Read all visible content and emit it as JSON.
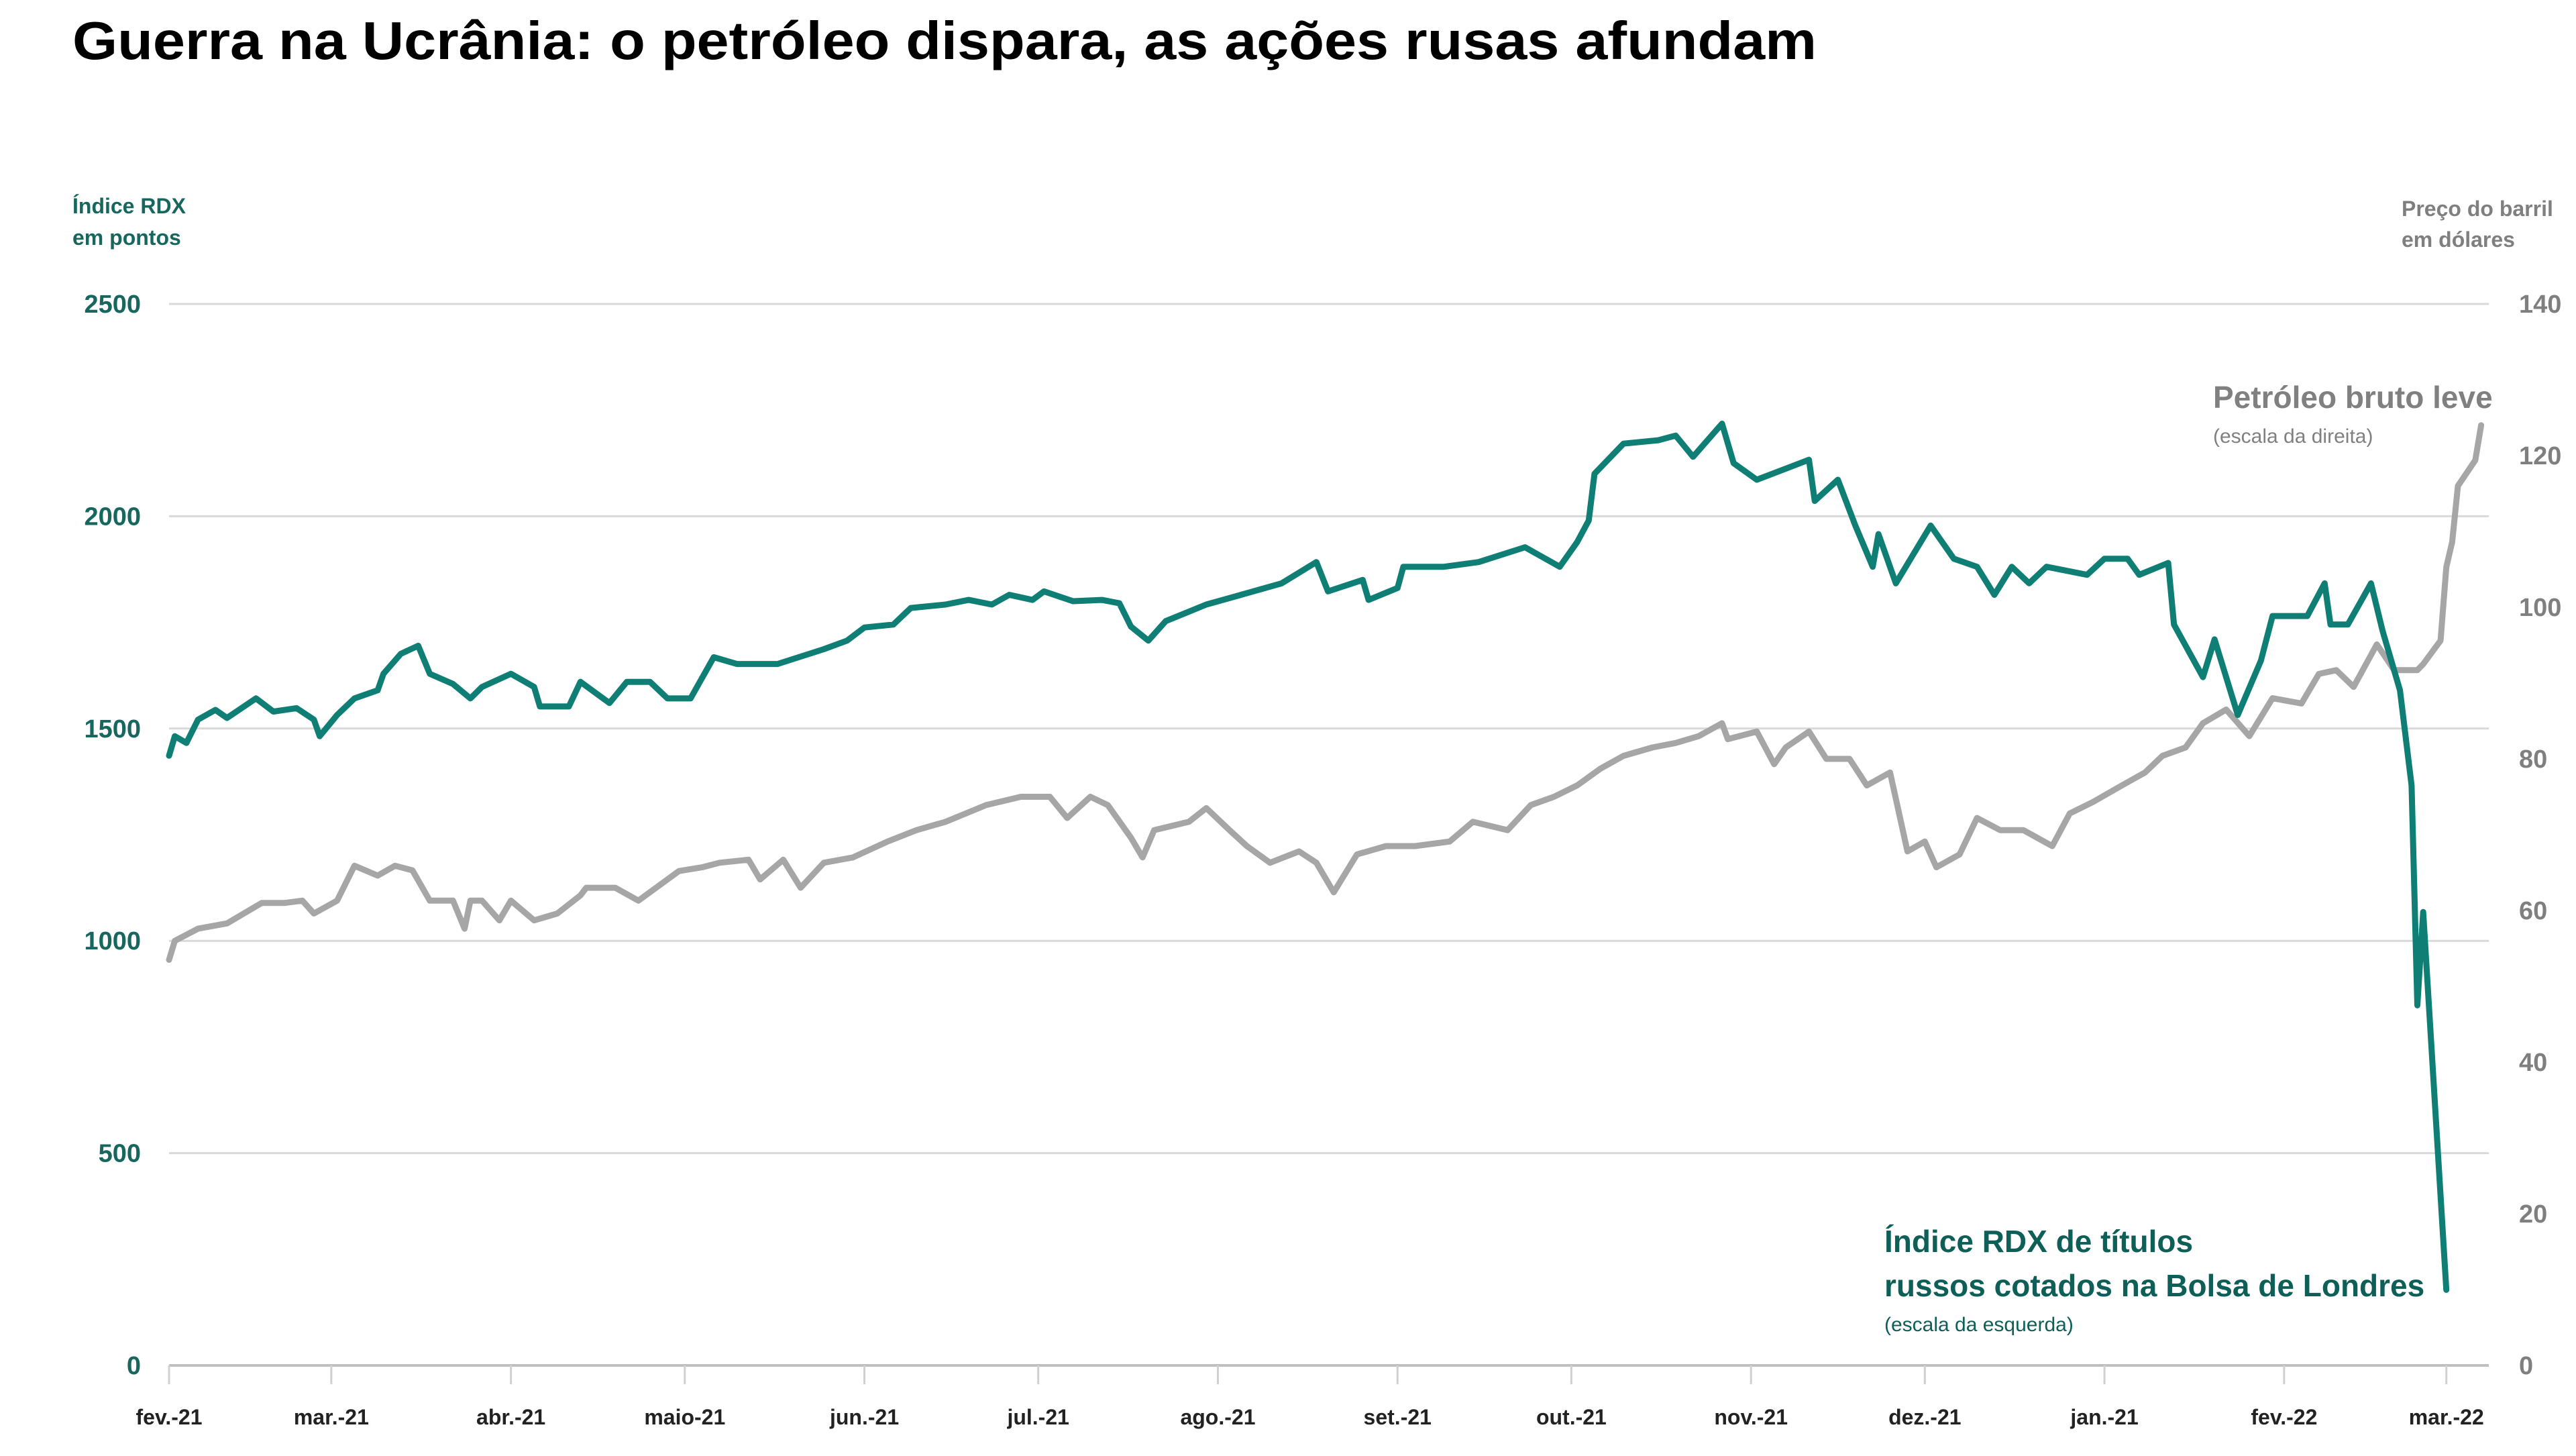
{
  "chart_data": {
    "type": "line",
    "title": "Guerra na Ucrânia: o petróleo dispara, as ações rusas afundam",
    "y_left": {
      "label_line1": "Índice RDX",
      "label_line2": "em pontos",
      "range": [
        0,
        2500
      ],
      "ticks": [
        0,
        500,
        1000,
        1500,
        2000,
        2500
      ]
    },
    "y_right": {
      "label_line1": "Preço do barril",
      "label_line2": "em dólares",
      "range": [
        0,
        140
      ],
      "ticks": [
        0,
        20,
        40,
        60,
        80,
        100,
        120,
        140
      ]
    },
    "x_ticks": [
      {
        "date": "2021-02-01",
        "label": "fev.-21"
      },
      {
        "date": "2021-03-01",
        "label": "mar.-21"
      },
      {
        "date": "2021-04-01",
        "label": "abr.-21"
      },
      {
        "date": "2021-05-01",
        "label": "maio-21"
      },
      {
        "date": "2021-06-01",
        "label": "jun.-21"
      },
      {
        "date": "2021-07-01",
        "label": "jul.-21"
      },
      {
        "date": "2021-08-01",
        "label": "ago.-21"
      },
      {
        "date": "2021-09-01",
        "label": "set.-21"
      },
      {
        "date": "2021-10-01",
        "label": "out.-21"
      },
      {
        "date": "2021-11-01",
        "label": "nov.-21"
      },
      {
        "date": "2021-12-01",
        "label": "dez.-21"
      },
      {
        "date": "2022-01-01",
        "label": "jan.-21"
      },
      {
        "date": "2022-02-01",
        "label": "fev.-22"
      },
      {
        "date": "2022-03-01",
        "label": "mar.-22"
      }
    ],
    "grid": "horizontal",
    "colors": {
      "rdx": "#0f7e74",
      "oil": "#a6a6a6",
      "grid": "#d9d9d9"
    },
    "series": [
      {
        "name": "Índice RDX de títulos russos cotados na Bolsa de Londres",
        "name_line1": "Índice RDX de títulos",
        "name_line2": "russos cotados na Bolsa de Londres",
        "note": "(escala da esquerda)",
        "axis": "left",
        "points": [
          [
            "2021-02-01",
            1436
          ],
          [
            "2021-02-02",
            1482
          ],
          [
            "2021-02-04",
            1466
          ],
          [
            "2021-02-06",
            1521
          ],
          [
            "2021-02-09",
            1544
          ],
          [
            "2021-02-11",
            1525
          ],
          [
            "2021-02-16",
            1571
          ],
          [
            "2021-02-19",
            1540
          ],
          [
            "2021-02-23",
            1548
          ],
          [
            "2021-02-26",
            1521
          ],
          [
            "2021-02-27",
            1482
          ],
          [
            "2021-03-02",
            1532
          ],
          [
            "2021-03-05",
            1571
          ],
          [
            "2021-03-09",
            1590
          ],
          [
            "2021-03-10",
            1629
          ],
          [
            "2021-03-13",
            1676
          ],
          [
            "2021-03-16",
            1695
          ],
          [
            "2021-03-18",
            1629
          ],
          [
            "2021-03-22",
            1605
          ],
          [
            "2021-03-25",
            1571
          ],
          [
            "2021-03-27",
            1598
          ],
          [
            "2021-04-01",
            1629
          ],
          [
            "2021-04-05",
            1598
          ],
          [
            "2021-04-06",
            1552
          ],
          [
            "2021-04-11",
            1552
          ],
          [
            "2021-04-13",
            1610
          ],
          [
            "2021-04-18",
            1560
          ],
          [
            "2021-04-21",
            1610
          ],
          [
            "2021-04-25",
            1610
          ],
          [
            "2021-04-28",
            1571
          ],
          [
            "2021-05-02",
            1571
          ],
          [
            "2021-05-06",
            1668
          ],
          [
            "2021-05-10",
            1652
          ],
          [
            "2021-05-17",
            1652
          ],
          [
            "2021-05-25",
            1687
          ],
          [
            "2021-05-29",
            1707
          ],
          [
            "2021-06-01",
            1738
          ],
          [
            "2021-06-06",
            1745
          ],
          [
            "2021-06-09",
            1784
          ],
          [
            "2021-06-15",
            1792
          ],
          [
            "2021-06-19",
            1803
          ],
          [
            "2021-06-23",
            1792
          ],
          [
            "2021-06-26",
            1815
          ],
          [
            "2021-06-30",
            1803
          ],
          [
            "2021-07-02",
            1823
          ],
          [
            "2021-07-07",
            1800
          ],
          [
            "2021-07-12",
            1803
          ],
          [
            "2021-07-15",
            1795
          ],
          [
            "2021-07-17",
            1740
          ],
          [
            "2021-07-20",
            1707
          ],
          [
            "2021-07-23",
            1753
          ],
          [
            "2021-07-30",
            1792
          ],
          [
            "2021-08-05",
            1815
          ],
          [
            "2021-08-12",
            1842
          ],
          [
            "2021-08-18",
            1892
          ],
          [
            "2021-08-20",
            1823
          ],
          [
            "2021-08-26",
            1850
          ],
          [
            "2021-08-27",
            1803
          ],
          [
            "2021-09-01",
            1831
          ],
          [
            "2021-09-02",
            1881
          ],
          [
            "2021-09-09",
            1881
          ],
          [
            "2021-09-15",
            1892
          ],
          [
            "2021-09-23",
            1927
          ],
          [
            "2021-09-29",
            1881
          ],
          [
            "2021-10-02",
            1939
          ],
          [
            "2021-10-04",
            1990
          ],
          [
            "2021-10-05",
            2100
          ],
          [
            "2021-10-10",
            2171
          ],
          [
            "2021-10-16",
            2179
          ],
          [
            "2021-10-19",
            2190
          ],
          [
            "2021-10-22",
            2140
          ],
          [
            "2021-10-27",
            2218
          ],
          [
            "2021-10-29",
            2125
          ],
          [
            "2021-11-02",
            2086
          ],
          [
            "2021-11-11",
            2133
          ],
          [
            "2021-11-12",
            2036
          ],
          [
            "2021-11-16",
            2086
          ],
          [
            "2021-11-19",
            1978
          ],
          [
            "2021-11-22",
            1881
          ],
          [
            "2021-11-23",
            1958
          ],
          [
            "2021-11-26",
            1842
          ],
          [
            "2021-12-02",
            1978
          ],
          [
            "2021-12-06",
            1900
          ],
          [
            "2021-12-10",
            1881
          ],
          [
            "2021-12-13",
            1815
          ],
          [
            "2021-12-16",
            1881
          ],
          [
            "2021-12-19",
            1842
          ],
          [
            "2021-12-22",
            1881
          ],
          [
            "2021-12-29",
            1862
          ],
          [
            "2022-01-01",
            1900
          ],
          [
            "2022-01-05",
            1900
          ],
          [
            "2022-01-07",
            1862
          ],
          [
            "2022-01-12",
            1890
          ],
          [
            "2022-01-13",
            1745
          ],
          [
            "2022-01-18",
            1621
          ],
          [
            "2022-01-20",
            1710
          ],
          [
            "2022-01-24",
            1532
          ],
          [
            "2022-01-28",
            1660
          ],
          [
            "2022-01-30",
            1765
          ],
          [
            "2022-02-05",
            1765
          ],
          [
            "2022-02-08",
            1842
          ],
          [
            "2022-02-09",
            1745
          ],
          [
            "2022-02-12",
            1745
          ],
          [
            "2022-02-16",
            1842
          ],
          [
            "2022-02-18",
            1730
          ],
          [
            "2022-02-21",
            1590
          ],
          [
            "2022-02-23",
            1366
          ],
          [
            "2022-02-24",
            848
          ],
          [
            "2022-02-25",
            1068
          ],
          [
            "2022-03-01",
            178
          ]
        ]
      },
      {
        "name": "Petróleo bruto leve",
        "note": "(escala da direita)",
        "axis": "right",
        "points": [
          [
            "2021-02-01",
            53.5
          ],
          [
            "2021-02-02",
            56
          ],
          [
            "2021-02-06",
            57.6
          ],
          [
            "2021-02-11",
            58.3
          ],
          [
            "2021-02-17",
            61
          ],
          [
            "2021-02-21",
            61
          ],
          [
            "2021-02-24",
            61.3
          ],
          [
            "2021-02-26",
            59.6
          ],
          [
            "2021-03-02",
            61.3
          ],
          [
            "2021-03-05",
            65.9
          ],
          [
            "2021-03-09",
            64.6
          ],
          [
            "2021-03-12",
            65.9
          ],
          [
            "2021-03-15",
            65.3
          ],
          [
            "2021-03-18",
            61.3
          ],
          [
            "2021-03-22",
            61.3
          ],
          [
            "2021-03-24",
            57.6
          ],
          [
            "2021-03-25",
            61.3
          ],
          [
            "2021-03-27",
            61.3
          ],
          [
            "2021-03-30",
            58.7
          ],
          [
            "2021-04-01",
            61.3
          ],
          [
            "2021-04-05",
            58.7
          ],
          [
            "2021-04-09",
            59.6
          ],
          [
            "2021-04-13",
            62
          ],
          [
            "2021-04-14",
            63
          ],
          [
            "2021-04-19",
            63
          ],
          [
            "2021-04-23",
            61.3
          ],
          [
            "2021-04-28",
            64.1
          ],
          [
            "2021-04-30",
            65.2
          ],
          [
            "2021-05-04",
            65.7
          ],
          [
            "2021-05-07",
            66.3
          ],
          [
            "2021-05-12",
            66.7
          ],
          [
            "2021-05-14",
            64.1
          ],
          [
            "2021-05-18",
            66.7
          ],
          [
            "2021-05-21",
            63
          ],
          [
            "2021-05-25",
            66.3
          ],
          [
            "2021-05-30",
            67
          ],
          [
            "2021-06-05",
            69.1
          ],
          [
            "2021-06-10",
            70.6
          ],
          [
            "2021-06-15",
            71.7
          ],
          [
            "2021-06-22",
            73.9
          ],
          [
            "2021-06-28",
            75
          ],
          [
            "2021-07-03",
            75
          ],
          [
            "2021-07-06",
            72.2
          ],
          [
            "2021-07-10",
            75
          ],
          [
            "2021-07-13",
            73.9
          ],
          [
            "2021-07-17",
            69.6
          ],
          [
            "2021-07-19",
            67
          ],
          [
            "2021-07-21",
            70.6
          ],
          [
            "2021-07-27",
            71.7
          ],
          [
            "2021-07-30",
            73.5
          ],
          [
            "2021-08-03",
            70.6
          ],
          [
            "2021-08-06",
            68.5
          ],
          [
            "2021-08-10",
            66.3
          ],
          [
            "2021-08-15",
            67.8
          ],
          [
            "2021-08-18",
            66.3
          ],
          [
            "2021-08-21",
            62.4
          ],
          [
            "2021-08-25",
            67.4
          ],
          [
            "2021-08-30",
            68.5
          ],
          [
            "2021-09-04",
            68.5
          ],
          [
            "2021-09-10",
            69.1
          ],
          [
            "2021-09-14",
            71.7
          ],
          [
            "2021-09-20",
            70.6
          ],
          [
            "2021-09-24",
            73.9
          ],
          [
            "2021-09-28",
            75
          ],
          [
            "2021-10-02",
            76.5
          ],
          [
            "2021-10-06",
            78.7
          ],
          [
            "2021-10-10",
            80.4
          ],
          [
            "2021-10-15",
            81.5
          ],
          [
            "2021-10-19",
            82.1
          ],
          [
            "2021-10-23",
            83
          ],
          [
            "2021-10-27",
            84.7
          ],
          [
            "2021-10-28",
            82.6
          ],
          [
            "2021-11-02",
            83.6
          ],
          [
            "2021-11-05",
            79.3
          ],
          [
            "2021-11-07",
            81.5
          ],
          [
            "2021-11-11",
            83.6
          ],
          [
            "2021-11-14",
            80
          ],
          [
            "2021-11-18",
            80
          ],
          [
            "2021-11-21",
            76.5
          ],
          [
            "2021-11-25",
            78.2
          ],
          [
            "2021-11-28",
            67.8
          ],
          [
            "2021-12-01",
            69.1
          ],
          [
            "2021-12-03",
            65.7
          ],
          [
            "2021-12-07",
            67.4
          ],
          [
            "2021-12-10",
            72.2
          ],
          [
            "2021-12-14",
            70.6
          ],
          [
            "2021-12-18",
            70.6
          ],
          [
            "2021-12-23",
            68.5
          ],
          [
            "2021-12-26",
            72.8
          ],
          [
            "2021-12-30",
            74.3
          ],
          [
            "2022-01-04",
            76.5
          ],
          [
            "2022-01-08",
            78.2
          ],
          [
            "2022-01-11",
            80.4
          ],
          [
            "2022-01-15",
            81.5
          ],
          [
            "2022-01-18",
            84.7
          ],
          [
            "2022-01-22",
            86.5
          ],
          [
            "2022-01-26",
            83
          ],
          [
            "2022-01-30",
            88
          ],
          [
            "2022-02-04",
            87.3
          ],
          [
            "2022-02-07",
            91.2
          ],
          [
            "2022-02-10",
            91.7
          ],
          [
            "2022-02-13",
            89.5
          ],
          [
            "2022-02-17",
            95.1
          ],
          [
            "2022-02-20",
            91.7
          ],
          [
            "2022-02-24",
            91.7
          ],
          [
            "2022-02-25",
            92.5
          ],
          [
            "2022-02-28",
            95.6
          ],
          [
            "2022-03-01",
            105.3
          ],
          [
            "2022-03-02",
            108.6
          ],
          [
            "2022-03-03",
            116
          ],
          [
            "2022-03-06",
            119.4
          ],
          [
            "2022-03-07",
            124
          ]
        ]
      }
    ]
  }
}
